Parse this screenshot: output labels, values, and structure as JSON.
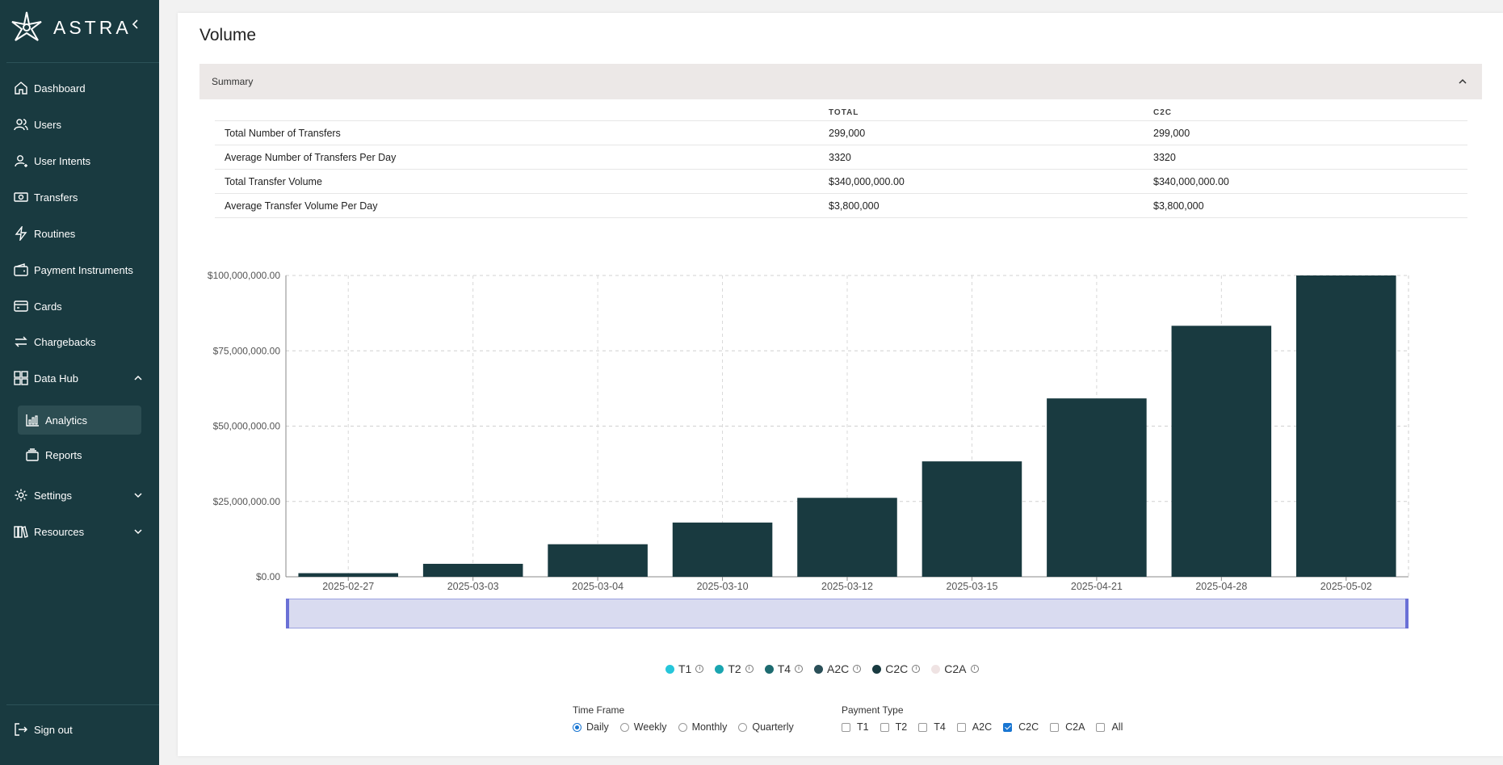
{
  "brand": {
    "name": "ASTRA"
  },
  "sidebar": {
    "items": [
      {
        "label": "Dashboard",
        "icon": "home-icon"
      },
      {
        "label": "Users",
        "icon": "users-icon"
      },
      {
        "label": "User Intents",
        "icon": "user-intent-icon"
      },
      {
        "label": "Transfers",
        "icon": "money-icon"
      },
      {
        "label": "Routines",
        "icon": "bolt-icon"
      },
      {
        "label": "Payment Instruments",
        "icon": "wallet-icon"
      },
      {
        "label": "Cards",
        "icon": "card-icon"
      },
      {
        "label": "Chargebacks",
        "icon": "swap-icon"
      },
      {
        "label": "Data Hub",
        "icon": "grid-icon",
        "expanded": true
      },
      {
        "label": "Settings",
        "icon": "gear-icon",
        "expanded": false
      },
      {
        "label": "Resources",
        "icon": "library-icon",
        "expanded": false
      }
    ],
    "data_hub_children": [
      {
        "label": "Analytics",
        "icon": "bar-chart-icon",
        "active": true
      },
      {
        "label": "Reports",
        "icon": "stack-icon",
        "active": false
      }
    ],
    "sign_out": "Sign out"
  },
  "page": {
    "title": "Volume",
    "summary_label": "Summary"
  },
  "summary_table": {
    "headers": [
      "",
      "TOTAL",
      "C2C"
    ],
    "rows": [
      [
        "Total Number of Transfers",
        "299,000",
        "299,000"
      ],
      [
        "Average Number of Transfers Per Day",
        "3320",
        "3320"
      ],
      [
        "Total Transfer Volume",
        "$340,000,000.00",
        "$340,000,000.00"
      ],
      [
        "Average Transfer Volume Per Day",
        "$3,800,000",
        "$3,800,000"
      ]
    ]
  },
  "chart_data": {
    "type": "bar",
    "categories": [
      "2025-02-27",
      "2025-03-03",
      "2025-03-04",
      "2025-03-10",
      "2025-03-12",
      "2025-03-15",
      "2025-04-21",
      "2025-04-28",
      "2025-05-02"
    ],
    "series": [
      {
        "name": "C2C",
        "values": [
          1200000,
          4300000,
          10800000,
          18000000,
          26200000,
          38300000,
          59200000,
          83300000,
          100000000
        ]
      }
    ],
    "ylim": [
      0,
      100000000
    ],
    "yticks": [
      "$0.00",
      "$25,000,000.00",
      "$50,000,000.00",
      "$75,000,000.00",
      "$100,000,000.00"
    ],
    "grid": true,
    "bar_color": "#193a40"
  },
  "legend": [
    {
      "label": "T1",
      "color": "#26c6da"
    },
    {
      "label": "T2",
      "color": "#1aa5b0"
    },
    {
      "label": "T4",
      "color": "#1d6b70"
    },
    {
      "label": "A2C",
      "color": "#2a4f58"
    },
    {
      "label": "C2C",
      "color": "#193a40"
    },
    {
      "label": "C2A",
      "color": "#efe3e3"
    }
  ],
  "filters": {
    "time_frame": {
      "title": "Time Frame",
      "options": [
        "Daily",
        "Weekly",
        "Monthly",
        "Quarterly"
      ],
      "selected": "Daily"
    },
    "payment_type": {
      "title": "Payment Type",
      "options": [
        "T1",
        "T2",
        "T4",
        "A2C",
        "C2C",
        "C2A",
        "All"
      ],
      "checked": [
        "C2C"
      ]
    }
  }
}
